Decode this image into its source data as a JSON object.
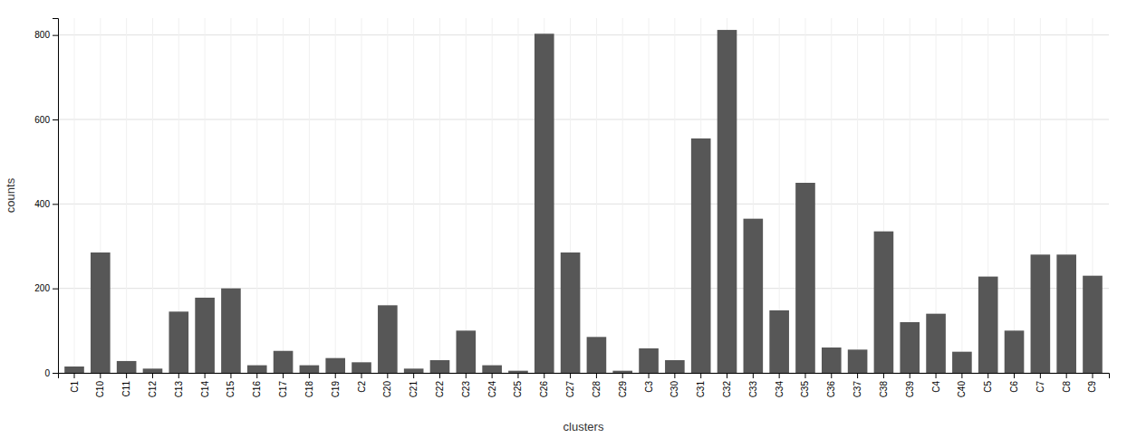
{
  "chart_data": {
    "type": "bar",
    "xlabel": "clusters",
    "ylabel": "counts",
    "categories": [
      "C1",
      "C10",
      "C11",
      "C12",
      "C13",
      "C14",
      "C15",
      "C16",
      "C17",
      "C18",
      "C19",
      "C2",
      "C20",
      "C21",
      "C22",
      "C23",
      "C24",
      "C25",
      "C26",
      "C27",
      "C28",
      "C29",
      "C3",
      "C30",
      "C31",
      "C32",
      "C33",
      "C34",
      "C35",
      "C36",
      "C37",
      "C38",
      "C39",
      "C4",
      "C40",
      "C5",
      "C6",
      "C7",
      "C8",
      "C9"
    ],
    "values": [
      15,
      285,
      28,
      10,
      145,
      178,
      200,
      18,
      52,
      18,
      35,
      25,
      160,
      10,
      30,
      100,
      18,
      5,
      803,
      285,
      85,
      5,
      58,
      30,
      555,
      812,
      365,
      148,
      450,
      60,
      55,
      335,
      120,
      140,
      50,
      228,
      100,
      280,
      280,
      230
    ],
    "color": "#575757",
    "ylim": [
      0,
      840
    ],
    "yticks": [
      0,
      200,
      400,
      600,
      800
    ],
    "grid": true
  }
}
